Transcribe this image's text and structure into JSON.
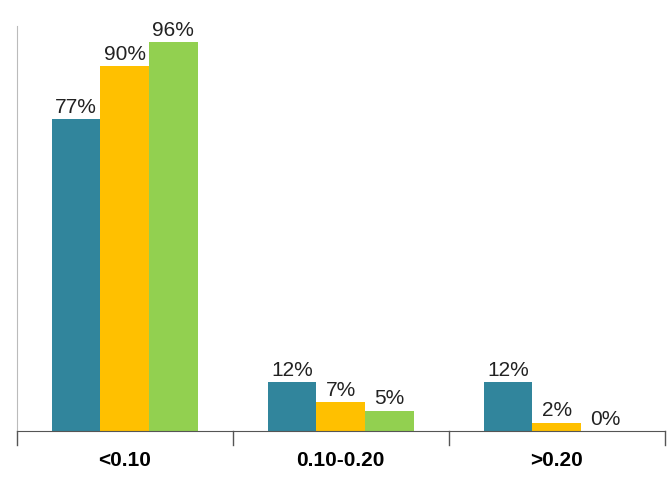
{
  "chart_data": {
    "type": "bar",
    "categories": [
      "<0.10",
      "0.10-0.20",
      ">0.20"
    ],
    "series": [
      {
        "color": "#31859C",
        "values": [
          77,
          12,
          12
        ],
        "value_labels": [
          "77%",
          "12%",
          "12%"
        ]
      },
      {
        "color": "#FFC000",
        "values": [
          90,
          7,
          2
        ],
        "value_labels": [
          "90%",
          "7%",
          "2%"
        ]
      },
      {
        "color": "#92D050",
        "values": [
          96,
          5,
          0
        ],
        "value_labels": [
          "96%",
          "5%",
          "0%"
        ]
      }
    ],
    "ylim": [
      0,
      100
    ],
    "yticks": [],
    "data_labels": true,
    "tick_labels": "x",
    "grid": false
  }
}
